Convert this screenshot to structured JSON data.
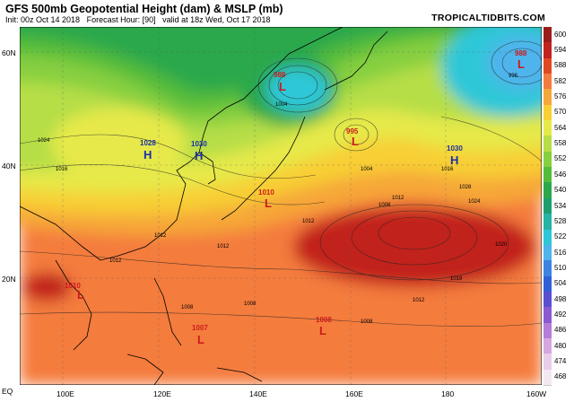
{
  "header": {
    "title": "GFS 500mb Geopotential Height (dam) & MSLP (mb)",
    "init": "Init: 00z Oct 14 2018",
    "forecast": "Forecast Hour: [90]",
    "valid": "valid at 18z Wed, Oct 17 2018",
    "brand": "TROPICALTIDBITS.COM"
  },
  "axes": {
    "lat_labels": [
      "60N",
      "40N",
      "20N",
      "EQ"
    ],
    "lon_labels": [
      "100E",
      "120E",
      "140E",
      "160E",
      "180",
      "160W"
    ]
  },
  "colorbar": {
    "ticks": [
      "600",
      "594",
      "588",
      "582",
      "576",
      "570",
      "564",
      "558",
      "552",
      "546",
      "540",
      "534",
      "528",
      "522",
      "516",
      "510",
      "504",
      "498",
      "492",
      "486",
      "480",
      "474",
      "468"
    ],
    "colors": [
      "#9b1c1c",
      "#c2231f",
      "#e04a22",
      "#f47b3e",
      "#f6a739",
      "#f8cf34",
      "#e6e94a",
      "#b6de47",
      "#86cf3f",
      "#55bc3a",
      "#2ca84b",
      "#1e9e6f",
      "#27b3a6",
      "#2fc7d8",
      "#4fb3ec",
      "#3d84e2",
      "#3160d6",
      "#5b4fcf",
      "#8b59d0",
      "#b57cd8",
      "#d4a7e0",
      "#e8cde8",
      "#f3e8f1"
    ]
  },
  "pressure_centers": [
    {
      "type": "L",
      "value": "988"
    },
    {
      "type": "L",
      "value": "988"
    },
    {
      "type": "L",
      "value": "995"
    },
    {
      "type": "H",
      "value": "1028"
    },
    {
      "type": "H",
      "value": "1030"
    },
    {
      "type": "H",
      "value": "1030"
    },
    {
      "type": "L",
      "value": "1010"
    },
    {
      "type": "L",
      "value": "1010"
    },
    {
      "type": "L",
      "value": "1007"
    },
    {
      "type": "L",
      "value": "1008"
    }
  ],
  "isobar_labels": [
    "1024",
    "1016",
    "1012",
    "1012",
    "1012",
    "1004",
    "1008",
    "1012",
    "1016",
    "1016",
    "1020",
    "1024",
    "1028",
    "1004",
    "996",
    "1012",
    "1012",
    "1008",
    "1008",
    "1008"
  ]
}
